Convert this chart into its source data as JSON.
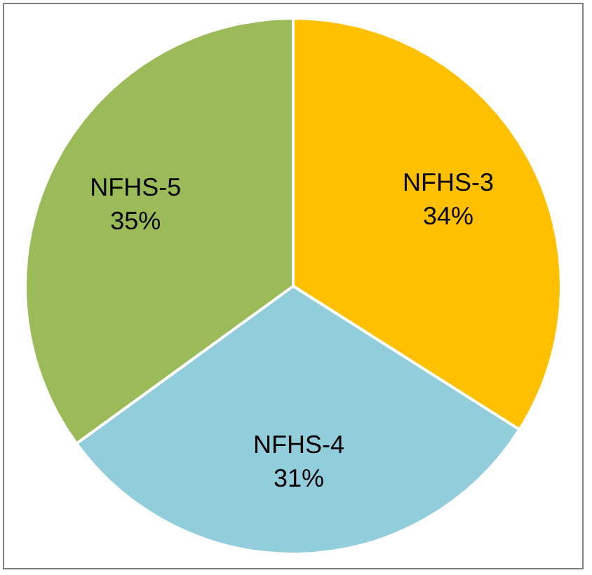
{
  "chart_data": {
    "type": "pie",
    "categories": [
      "NFHS-3",
      "NFHS-4",
      "NFHS-5"
    ],
    "values": [
      34,
      31,
      35
    ],
    "colors": [
      "#ffc000",
      "#92cddc",
      "#9bbb59"
    ],
    "value_labels": [
      "34%",
      "31%",
      "35%"
    ],
    "legend": false
  }
}
